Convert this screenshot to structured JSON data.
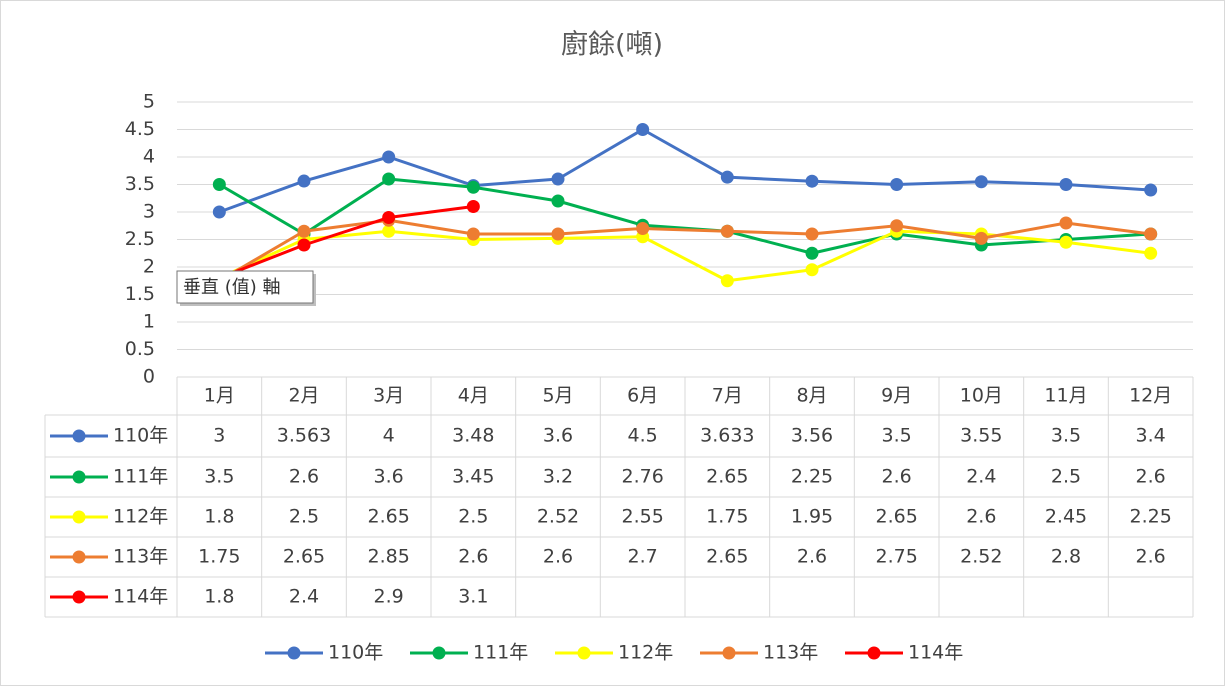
{
  "chart_data": {
    "type": "line",
    "title": "廚餘(噸)",
    "categories": [
      "1月",
      "2月",
      "3月",
      "4月",
      "5月",
      "6月",
      "7月",
      "8月",
      "9月",
      "10月",
      "11月",
      "12月"
    ],
    "series": [
      {
        "name": "110年",
        "color": "#4472c4",
        "values": [
          3,
          3.563,
          4,
          3.48,
          3.6,
          4.5,
          3.633,
          3.56,
          3.5,
          3.55,
          3.5,
          3.4
        ]
      },
      {
        "name": "111年",
        "color": "#00b050",
        "values": [
          3.5,
          2.6,
          3.6,
          3.45,
          3.2,
          2.76,
          2.65,
          2.25,
          2.6,
          2.4,
          2.5,
          2.6
        ]
      },
      {
        "name": "112年",
        "color": "#ffff00",
        "values": [
          1.8,
          2.5,
          2.65,
          2.5,
          2.52,
          2.55,
          1.75,
          1.95,
          2.65,
          2.6,
          2.45,
          2.25
        ]
      },
      {
        "name": "113年",
        "color": "#ed7d31",
        "values": [
          1.75,
          2.65,
          2.85,
          2.6,
          2.6,
          2.7,
          2.65,
          2.6,
          2.75,
          2.52,
          2.8,
          2.6
        ]
      },
      {
        "name": "114年",
        "color": "#ff0000",
        "values": [
          1.8,
          2.4,
          2.9,
          3.1,
          null,
          null,
          null,
          null,
          null,
          null,
          null,
          null
        ]
      }
    ],
    "ylim": [
      0,
      5
    ],
    "yticks": [
      0,
      0.5,
      1,
      1.5,
      2,
      2.5,
      3,
      3.5,
      4,
      4.5,
      5
    ],
    "grid": true,
    "tooltip": "垂直 (值) 軸"
  }
}
